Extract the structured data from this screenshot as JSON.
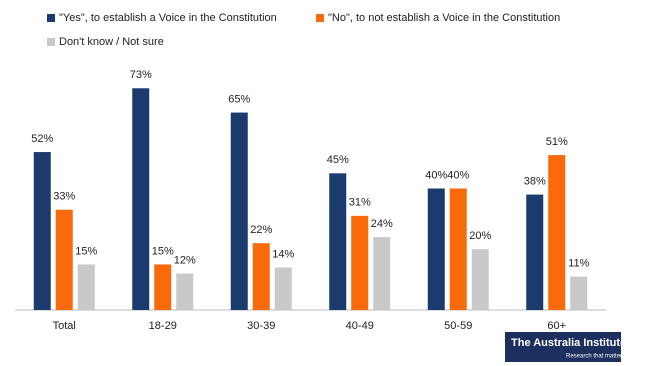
{
  "chart_data": {
    "type": "bar",
    "categories": [
      "Total",
      "18-29",
      "30-39",
      "40-49",
      "50-59",
      "60+"
    ],
    "series": [
      {
        "name": "\"Yes\", to establish a Voice in the Constitution",
        "color": "#1b3a6e",
        "values": [
          52,
          73,
          65,
          45,
          40,
          38
        ],
        "value_labels": [
          "52%",
          "73%",
          "65%",
          "45%",
          "40%",
          "38%"
        ]
      },
      {
        "name": "\"No\", to not establish a Voice in the Constitution",
        "color": "#fa6a0a",
        "values": [
          33,
          15,
          22,
          31,
          40,
          51
        ],
        "value_labels": [
          "33%",
          "15%",
          "22%",
          "31%",
          "40%",
          "51%"
        ]
      },
      {
        "name": "Don't know / Not sure",
        "color": "#c9c9c9",
        "values": [
          15,
          12,
          14,
          24,
          20,
          11
        ],
        "value_labels": [
          "15%",
          "12%",
          "14%",
          "24%",
          "20%",
          "11%"
        ]
      }
    ],
    "ylim": [
      0,
      80
    ]
  },
  "logo": {
    "name": "The Australia Institute",
    "tagline": "Research that matters"
  }
}
